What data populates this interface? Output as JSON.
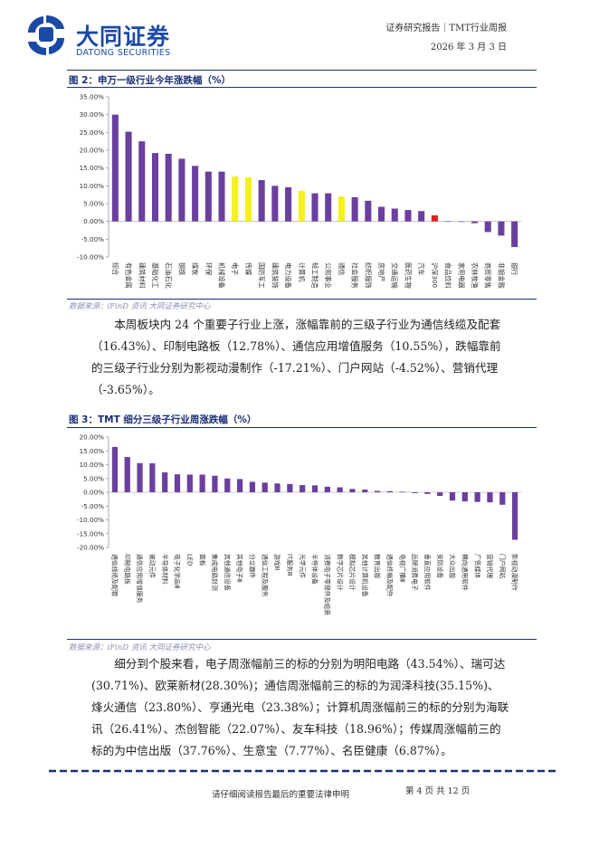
{
  "header": {
    "company_cn": "大同证券",
    "company_en": "DATONG SECURITIES",
    "report_type": "证券研究报告｜TMT行业周报",
    "date": "2026 年 3 月 3 日"
  },
  "figure2": {
    "title": "图 2：申万一级行业今年涨跌幅（%）",
    "source": "数据来源：iFinD 资讯 大同证券研究中心",
    "chart_data": {
      "type": "bar",
      "title": "申万一级行业今年涨跌幅（%）",
      "ylim": [
        -10,
        35
      ],
      "ytick_labels": [
        "35.00%",
        "30.00%",
        "25.00%",
        "20.00%",
        "15.00%",
        "10.00%",
        "5.00%",
        "0.00%",
        "-5.00%",
        "-10.00%"
      ],
      "categories": [
        "综合",
        "有色金属",
        "建筑材料",
        "基础化工",
        "石油石化",
        "钢铁",
        "煤炭",
        "环保",
        "机械设备",
        "电子",
        "传媒",
        "国防军工",
        "建筑装饰",
        "电力设备",
        "计算机",
        "轻工制造",
        "公用事业",
        "通信",
        "社会服务",
        "纺织服饰",
        "房地产",
        "交通运输",
        "医药生物",
        "汽车",
        "沪深300",
        "食品饮料",
        "家用电器",
        "农林牧渔",
        "商贸零售",
        "非银金融",
        "银行"
      ],
      "values": [
        30.0,
        25.2,
        22.5,
        19.2,
        19.0,
        17.6,
        15.6,
        14.0,
        14.0,
        12.6,
        12.4,
        11.6,
        10.0,
        9.6,
        8.6,
        7.9,
        7.9,
        7.0,
        6.8,
        5.8,
        4.1,
        3.6,
        3.2,
        2.9,
        1.7,
        0.1,
        0.0,
        -0.5,
        -3.0,
        -4.0,
        -7.2
      ],
      "colors": [
        "#6b3fa0",
        "#6b3fa0",
        "#6b3fa0",
        "#6b3fa0",
        "#6b3fa0",
        "#6b3fa0",
        "#6b3fa0",
        "#6b3fa0",
        "#6b3fa0",
        "#f5f01e",
        "#f5f01e",
        "#6b3fa0",
        "#6b3fa0",
        "#6b3fa0",
        "#f5f01e",
        "#6b3fa0",
        "#6b3fa0",
        "#f5f01e",
        "#6b3fa0",
        "#6b3fa0",
        "#6b3fa0",
        "#6b3fa0",
        "#6b3fa0",
        "#6b3fa0",
        "#e02020",
        "#6b3fa0",
        "#6b3fa0",
        "#6b3fa0",
        "#6b3fa0",
        "#6b3fa0",
        "#6b3fa0"
      ],
      "grid": false,
      "legend": "none"
    }
  },
  "paragraph1": "本周板块内 24 个重要子行业上涨，涨幅靠前的三级子行业为通信线缆及配套（16.43%）、印制电路板（12.78%）、通信应用增值服务（10.55%），跌幅靠前的三级子行业分别为影视动漫制作（-17.21%）、门户网站（-4.52%）、营销代理（-3.65%）。",
  "figure3": {
    "title": "图 3：TMT 细分三级子行业周涨跌幅（%）",
    "source": "数据来源：iFinD 资讯 大同证券研究中心",
    "chart_data": {
      "type": "bar",
      "title": "TMT 细分三级子行业周涨跌幅（%）",
      "ylim": [
        -20,
        20
      ],
      "ytick_labels": [
        "20.00%",
        "15.00%",
        "10.00%",
        "5.00%",
        "0.00%",
        "-5.00%",
        "-10.00%",
        "-15.00%",
        "-20.00%"
      ],
      "categories": [
        "通信线缆及配套",
        "印制电路板",
        "通信应用增值服务",
        "被动元件",
        "半导体材料",
        "电子化学品Ⅲ",
        "LED",
        "面板",
        "集成电路封测",
        "其他通信设备",
        "其他电子Ⅲ",
        "分立器件",
        "通信工程及服务",
        "游戏Ⅲ",
        "IT服务Ⅲ",
        "光学元件",
        "半导体设备",
        "消费电子零部件及组装",
        "数字芯片设计",
        "模拟芯片设计",
        "其他计算机设备",
        "教育出版",
        "通信终端及配件",
        "电视广播Ⅲ",
        "品牌消费电子",
        "垂直应用软件",
        "安防设备",
        "大众出版",
        "横向通用软件",
        "广告媒体",
        "营销代理",
        "门户网站",
        "影视动漫制作"
      ],
      "values": [
        16.43,
        12.78,
        10.55,
        10.5,
        7.2,
        6.5,
        6.4,
        6.4,
        6.0,
        5.0,
        4.8,
        3.8,
        3.5,
        3.2,
        3.0,
        2.6,
        2.5,
        2.0,
        1.8,
        1.2,
        1.0,
        0.5,
        0.4,
        0.2,
        -0.3,
        -0.6,
        -1.3,
        -3.0,
        -3.3,
        -3.5,
        -3.65,
        -4.52,
        -17.21
      ],
      "color": "#6b3fa0",
      "grid": false,
      "legend": "none"
    }
  },
  "paragraph2": "细分到个股来看，电子周涨幅前三的标的分别为明阳电路（43.54%）、瑞可达(30.71%)、欧莱新材(28.30%)；通信周涨幅前三的标的为润泽科技(35.15%)、烽火通信（23.80%）、亨通光电（23.38%）；计算机周涨幅前三的标的分别为海联讯（26.41%）、杰创智能（22.07%）、友车科技（18.96%）；传媒周涨幅前三的标的为中信出版（37.76%）、生意宝（7.77%）、名臣健康（6.87%）。",
  "footer": {
    "disclaimer": "请仔细阅读报告最后的重要法律申明",
    "page_info": "第 4 页 共 12 页"
  },
  "colors": {
    "brand_blue": "#1a4aa6",
    "title_navy": "#1a2f78",
    "bar_purple": "#6b3fa0",
    "bar_yellow": "#f5f01e",
    "bar_red": "#e02020"
  },
  "icons": {
    "logo": "datong-securities-logo-icon"
  }
}
